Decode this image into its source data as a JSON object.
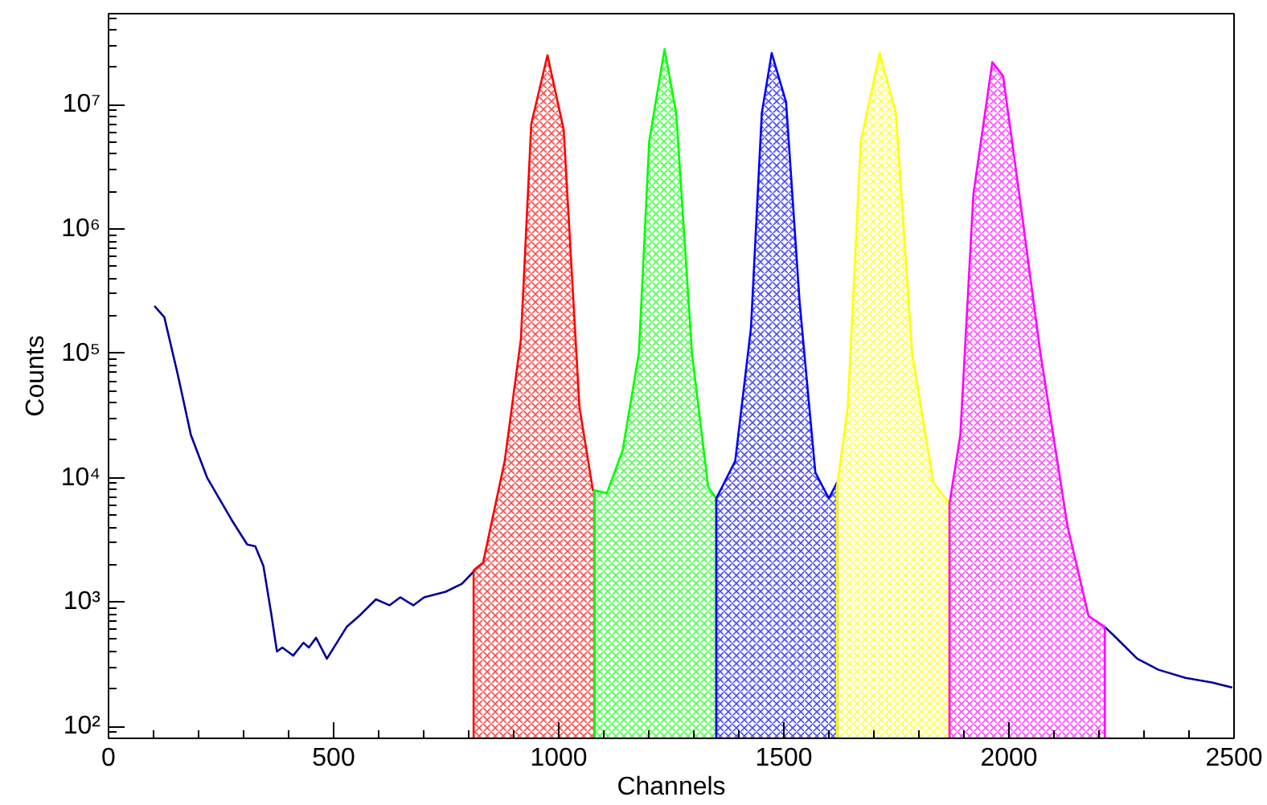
{
  "chart_data": {
    "type": "line",
    "xlabel": "Channels",
    "ylabel": "Counts",
    "log": "y",
    "grid": false,
    "xlim": [
      0,
      2500
    ],
    "ylim": [
      80,
      54000000
    ],
    "xticks": [
      0,
      500,
      1000,
      1500,
      2000,
      2500
    ],
    "yticks": [
      {
        "value": 100,
        "label": "10²"
      },
      {
        "value": 1000,
        "label": "10³"
      },
      {
        "value": 10000,
        "label": "10⁴"
      },
      {
        "value": 100000,
        "label": "10⁵"
      },
      {
        "value": 1000000,
        "label": "10⁶"
      },
      {
        "value": 10000000,
        "label": "10⁷"
      }
    ],
    "series": [
      {
        "color": "#000099",
        "x": [
          102,
          124,
          154,
          183,
          219,
          273,
          308,
          326,
          344,
          362,
          374,
          386,
          410,
          433,
          445,
          461,
          485,
          529,
          558,
          594,
          624,
          648,
          677,
          701,
          749,
          785,
          814,
          1500,
          2213,
          2237,
          2285,
          2332,
          2392,
          2451,
          2496
        ],
        "values": [
          240000,
          195000,
          67000,
          22000,
          10000,
          4600,
          2900,
          2800,
          1950,
          780,
          400,
          430,
          370,
          470,
          430,
          515,
          350,
          630,
          780,
          1050,
          940,
          1090,
          940,
          1090,
          1210,
          1400,
          1800,
          null,
          630,
          520,
          350,
          285,
          245,
          225,
          205
        ]
      },
      {
        "type": "area",
        "color": "#ff0000",
        "x": [
          811,
          832,
          880,
          916,
          939,
          975,
          1011,
          1046,
          1076,
          1079
        ],
        "values": [
          1800,
          2070,
          13600,
          130000,
          7000000,
          25000000,
          6300000,
          37000,
          7900,
          7900
        ]
      },
      {
        "type": "area",
        "color": "#00ff00",
        "x": [
          1079,
          1107,
          1142,
          1178,
          1201,
          1235,
          1261,
          1296,
          1332,
          1350
        ],
        "values": [
          7900,
          7500,
          16600,
          100000,
          5100000,
          28000000,
          8500000,
          100000,
          8400,
          6800
        ]
      },
      {
        "type": "area",
        "color": "#0000ff",
        "x": [
          1350,
          1392,
          1427,
          1451,
          1473,
          1505,
          1535,
          1570,
          1600,
          1618
        ],
        "values": [
          6800,
          13600,
          160000,
          8500000,
          26000000,
          10500000,
          260000,
          11000,
          6800,
          9100
        ]
      },
      {
        "type": "area",
        "color": "#ffff00",
        "x": [
          1618,
          1642,
          1671,
          1713,
          1749,
          1785,
          1832,
          1868
        ],
        "values": [
          8400,
          37000,
          5100000,
          26000000,
          8500000,
          100000,
          9100,
          6200
        ]
      },
      {
        "type": "area",
        "color": "#ff00ff",
        "x": [
          1868,
          1892,
          1921,
          1963,
          1987,
          2023,
          2070,
          2130,
          2177,
          2213
        ],
        "values": [
          6200,
          22000,
          1900000,
          22000000,
          17000000,
          1900000,
          100000,
          4100,
          770,
          630
        ]
      }
    ]
  }
}
